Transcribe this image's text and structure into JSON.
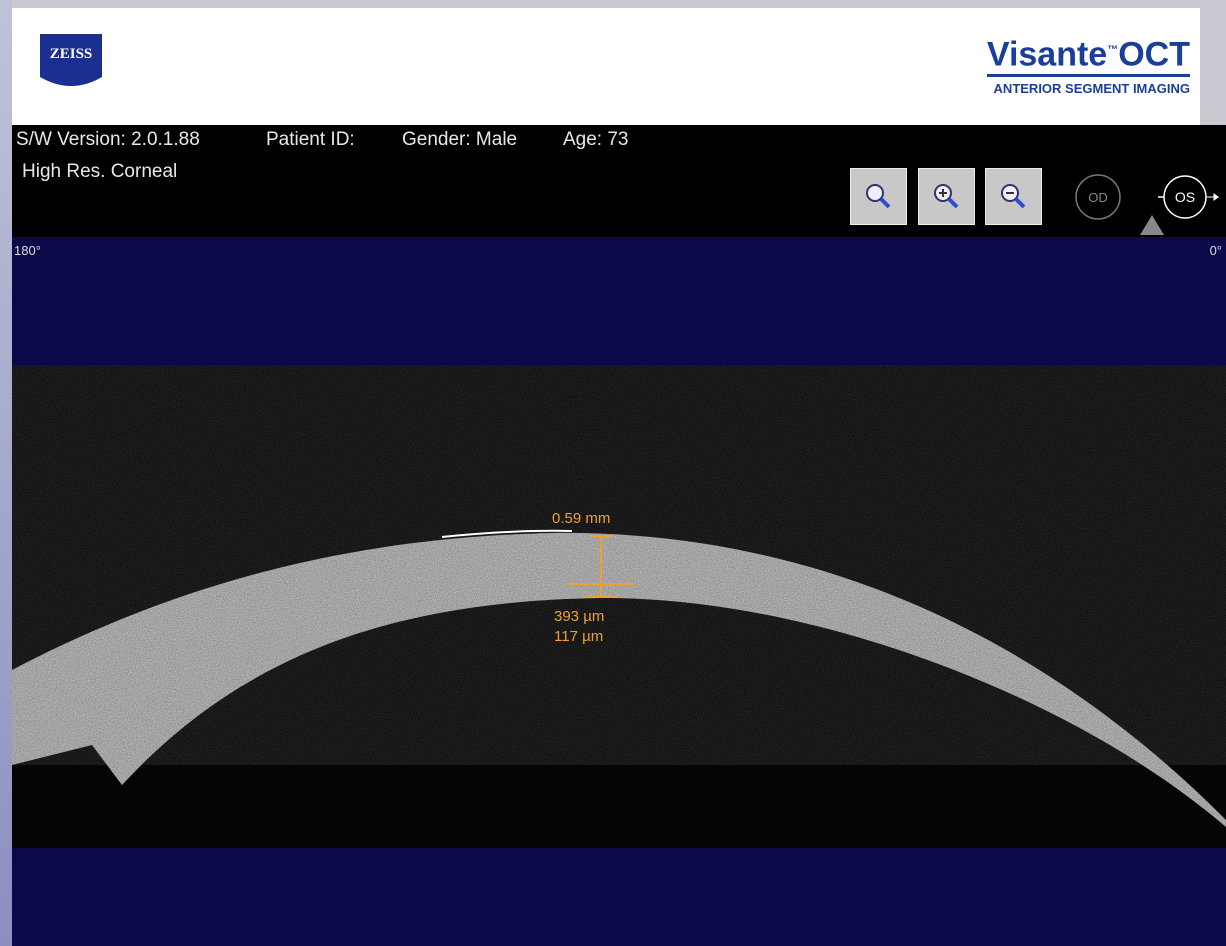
{
  "header": {
    "logo": "ZEISS",
    "product": "Visante",
    "trademark": "™",
    "product_suffix": "OCT",
    "tagline": "ANTERIOR SEGMENT IMAGING"
  },
  "info": {
    "version": "S/W Version: 2.0.1.88",
    "patient": "Patient ID:",
    "gender": "Gender: Male",
    "age": "Age: 73",
    "mode": "High Res. Corneal"
  },
  "eye_selector": {
    "left": "OD",
    "right": "OS"
  },
  "scan": {
    "left_angle": "180°",
    "right_angle": "0°"
  },
  "measurements": {
    "thickness": "0.59 mm",
    "depth_1": "393 µm",
    "depth_2": "117 µm"
  }
}
